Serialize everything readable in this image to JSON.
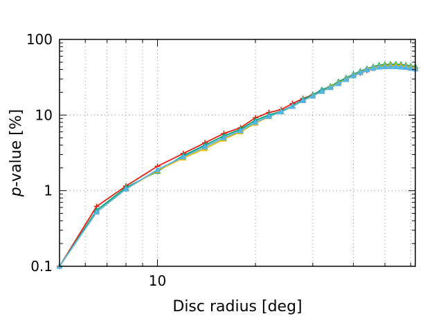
{
  "chart_data": {
    "type": "line",
    "xlabel": "Disc radius [deg]",
    "ylabel_prefix": "p",
    "ylabel_suffix": "-value [%]",
    "x_scale": "log",
    "y_scale": "log",
    "xlim": [
      5,
      62
    ],
    "ylim": [
      0.1,
      100
    ],
    "grid": true,
    "x_ticks": [
      {
        "value": 10,
        "label": "10"
      }
    ],
    "x_minor_ticks": [
      6,
      7,
      8,
      9,
      20,
      30,
      40,
      50,
      60
    ],
    "y_ticks": [
      {
        "value": 0.1,
        "label": "0.1"
      },
      {
        "value": 1,
        "label": "1"
      },
      {
        "value": 10,
        "label": "10"
      },
      {
        "value": 100,
        "label": "100"
      }
    ],
    "series": [
      {
        "color": "#e51e10",
        "marker": "plus",
        "x": [
          5,
          6.5,
          8,
          10,
          12,
          14,
          16,
          18,
          20,
          22,
          24,
          26,
          28,
          30,
          32,
          34,
          36,
          38,
          40,
          42,
          44,
          46,
          48,
          50,
          52,
          54,
          56,
          58,
          60,
          62
        ],
        "y": [
          0.1,
          0.62,
          1.15,
          2.1,
          3.1,
          4.3,
          5.7,
          6.8,
          9.2,
          10.8,
          11.8,
          14.2,
          16.5,
          18.5,
          21,
          23.5,
          26.5,
          30,
          33,
          36,
          39,
          41.5,
          43.5,
          44.5,
          45,
          45,
          44.5,
          43.5,
          42.5,
          41.5
        ]
      },
      {
        "color": "#009e73",
        "marker": "triangle",
        "x": [
          5,
          6.5,
          8,
          10,
          12,
          14,
          16,
          18,
          20,
          22,
          24,
          26,
          28,
          30,
          32,
          34,
          36,
          38,
          40,
          42,
          44,
          46,
          48,
          50,
          52,
          54,
          56,
          58,
          60,
          62
        ],
        "y": [
          0.1,
          0.55,
          1.1,
          1.8,
          2.9,
          4.0,
          5.3,
          6.5,
          8.5,
          10.0,
          11.2,
          13.2,
          16.0,
          18.5,
          21.5,
          24,
          27.5,
          31,
          34.5,
          38,
          41,
          43.5,
          45.5,
          46.5,
          47,
          47,
          46.5,
          45.5,
          44.5,
          43.5
        ]
      },
      {
        "color": "#e6b800",
        "marker": "triangle",
        "x": [
          5,
          6.5,
          8,
          10,
          12,
          14,
          16,
          18,
          20,
          22,
          24,
          26,
          28,
          30,
          32,
          34,
          36,
          38,
          40,
          42,
          44,
          46,
          48,
          50,
          52,
          54,
          56,
          58,
          60,
          62
        ],
        "y": [
          0.1,
          0.52,
          1.05,
          1.85,
          2.7,
          3.6,
          4.8,
          6.0,
          7.8,
          9.5,
          11.0,
          13.0,
          15.5,
          18.0,
          20.5,
          23.5,
          26.5,
          30,
          33.5,
          37,
          40,
          42.5,
          44,
          45,
          45.5,
          45.5,
          45,
          44,
          43,
          42
        ]
      },
      {
        "color": "#56b4e9",
        "marker": "triangle",
        "x": [
          5,
          6.5,
          8,
          10,
          12,
          14,
          16,
          18,
          20,
          22,
          24,
          26,
          28,
          30,
          32,
          34,
          36,
          38,
          40,
          42,
          44,
          46,
          48,
          50,
          52,
          54,
          56,
          58,
          60,
          62
        ],
        "y": [
          0.1,
          0.52,
          1.05,
          1.9,
          2.8,
          3.8,
          5.0,
          6.2,
          8.0,
          9.6,
          11.0,
          13.0,
          15.5,
          17.8,
          20.5,
          23,
          26,
          29.5,
          33,
          36.5,
          39.5,
          41.5,
          43,
          43.5,
          43.5,
          43.5,
          43,
          42.5,
          41.5,
          40.5
        ]
      }
    ]
  }
}
